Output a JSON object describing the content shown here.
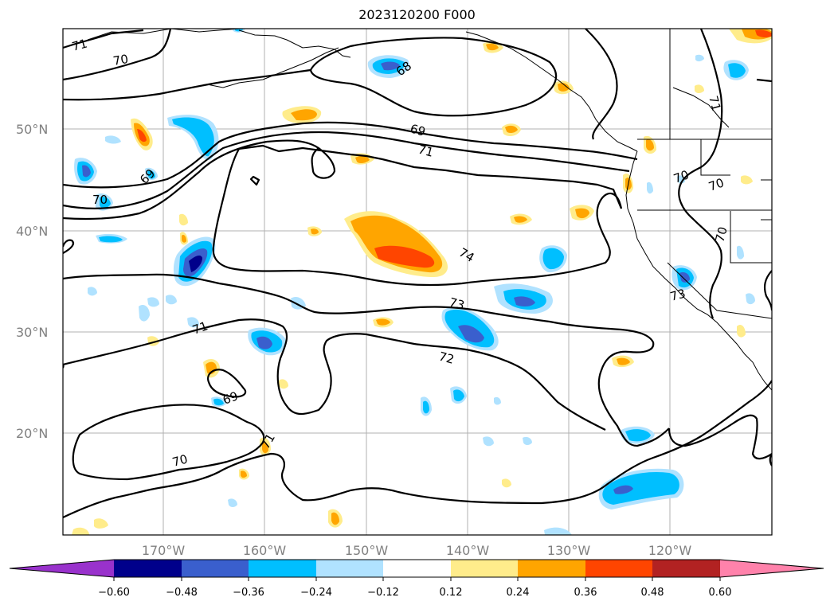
{
  "title": "2023120200 F000",
  "lat_labels": [
    "50°N",
    "40°N",
    "30°N",
    "20°N"
  ],
  "lon_labels": [
    "170°W",
    "160°W",
    "150°W",
    "140°W",
    "130°W",
    "120°W"
  ],
  "colorbar": {
    "labels": [
      "−0.60",
      "−0.48",
      "−0.36",
      "−0.24",
      "−0.12",
      "0.12",
      "0.24",
      "0.36",
      "0.48",
      "0.60"
    ],
    "colors": [
      "#9932cc",
      "#00008b",
      "#3a5fcd",
      "#00bfff",
      "#b0e2ff",
      "#ffffff",
      "#ffec8b",
      "#ffa500",
      "#ff4500",
      "#b22222",
      "#ff82ab"
    ]
  },
  "contour_labels": [
    "71",
    "70",
    "68",
    "69",
    "71",
    "69",
    "70",
    "74",
    "73",
    "71",
    "72",
    "69",
    "71",
    "70",
    "71",
    "70",
    "70",
    "70",
    "73"
  ]
}
